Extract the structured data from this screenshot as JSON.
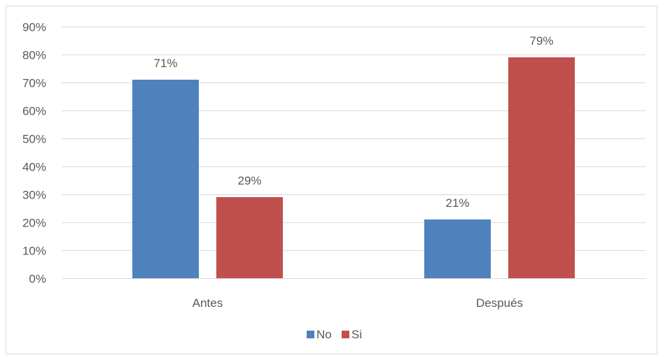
{
  "chart_data": {
    "type": "bar",
    "categories": [
      "Antes",
      "Después"
    ],
    "series": [
      {
        "name": "No",
        "values": [
          71,
          21
        ],
        "labels": [
          "71%",
          "21%"
        ],
        "color": "#4f81bd"
      },
      {
        "name": "Si",
        "values": [
          29,
          79
        ],
        "labels": [
          "29%",
          "79%"
        ],
        "color": "#c0504d"
      }
    ],
    "ylim": [
      0,
      90
    ],
    "yticks": [
      0,
      10,
      20,
      30,
      40,
      50,
      60,
      70,
      80,
      90
    ],
    "ytick_labels": [
      "0%",
      "10%",
      "20%",
      "30%",
      "40%",
      "50%",
      "60%",
      "70%",
      "80%",
      "90%"
    ],
    "grid": true,
    "legend_position": "bottom",
    "gridline_color": "#d9d9d9"
  }
}
